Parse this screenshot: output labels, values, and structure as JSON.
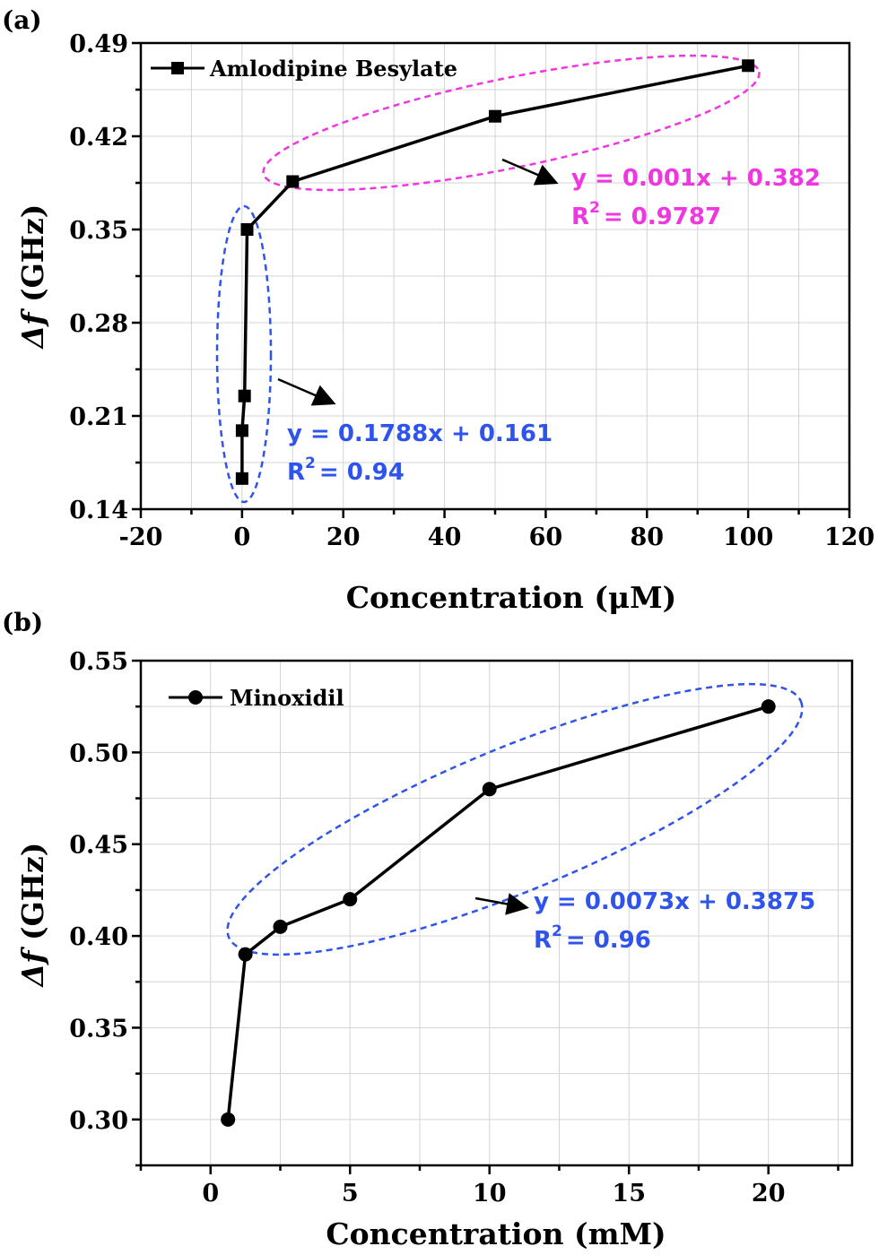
{
  "chart_data": [
    {
      "panel": "(a)",
      "type": "line",
      "xlabel": "Concentration (μM)",
      "ylabel_symbol": "Δf",
      "ylabel_unit": " (GHz)",
      "xlim": [
        -20,
        120
      ],
      "ylim": [
        0.14,
        0.49
      ],
      "xticks": [
        -20,
        0,
        20,
        40,
        60,
        80,
        100,
        120
      ],
      "yticks": [
        0.14,
        0.21,
        0.28,
        0.35,
        0.42,
        0.49
      ],
      "ytick_labels": [
        "0.14",
        "0.21",
        "0.28",
        "0.35",
        "0.42",
        "0.49"
      ],
      "marker": "square",
      "legend": "Amlodipine Besylate",
      "legend_position": "top-left",
      "grid": true,
      "series": [
        {
          "name": "Amlodipine Besylate",
          "x": [
            0.0,
            0.01,
            0.5,
            1.0,
            10.0,
            50.0,
            100.0
          ],
          "y": [
            0.163,
            0.199,
            0.225,
            0.35,
            0.386,
            0.435,
            0.473
          ]
        }
      ],
      "annotations": [
        {
          "id": "fit-low",
          "color": "#2f54eb",
          "line1": "y = 0.1788x + 0.161",
          "r_base": "R",
          "r_sup": "2",
          "r_rest": "= 0.94"
        },
        {
          "id": "fit-high",
          "color": "#f036e0",
          "line1": "y = 0.001x + 0.382",
          "r_base": "R",
          "r_sup": "2",
          "r_rest": "= 0.9787"
        }
      ]
    },
    {
      "panel": "(b)",
      "type": "line",
      "xlabel": "Concentration (mM)",
      "ylabel_symbol": "Δf",
      "ylabel_unit": " (GHz)",
      "xlim": [
        -2.5,
        23
      ],
      "ylim": [
        0.275,
        0.55
      ],
      "xticks": [
        0,
        5,
        10,
        15,
        20
      ],
      "yticks": [
        0.3,
        0.35,
        0.4,
        0.45,
        0.5,
        0.55
      ],
      "ytick_labels": [
        "0.30",
        "0.35",
        "0.40",
        "0.45",
        "0.50",
        "0.55"
      ],
      "marker": "circle",
      "legend": "Minoxidil",
      "legend_position": "top-left",
      "grid": true,
      "series": [
        {
          "name": "Minoxidil",
          "x": [
            0.625,
            1.25,
            2.5,
            5,
            10,
            20
          ],
          "y": [
            0.3,
            0.39,
            0.405,
            0.42,
            0.48,
            0.525
          ]
        }
      ],
      "annotations": [
        {
          "id": "fit-b",
          "color": "#2f54eb",
          "line1": "y = 0.0073x + 0.3875",
          "r_base": "R",
          "r_sup": "2",
          "r_rest": "= 0.96"
        }
      ]
    }
  ]
}
